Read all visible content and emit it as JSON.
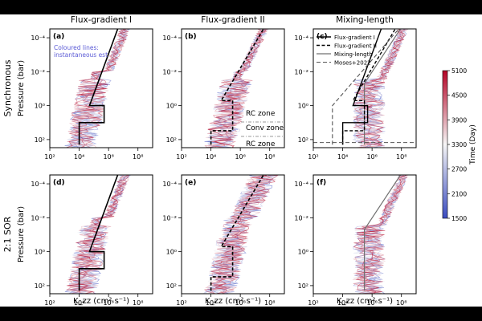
{
  "chart_data": {
    "type": "line",
    "column_titles": [
      "Flux-gradient I",
      "Flux-gradient II",
      "Mixing-length"
    ],
    "row_titles": [
      "Synchronous",
      "2:1 SOR"
    ],
    "ylabel": "Pressure (bar)",
    "xlabel": "K_zz (cm² s⁻¹)",
    "xscale": "log",
    "yscale": "log",
    "xlim": [
      100,
      1000000000.0
    ],
    "ylim_bar": [
      300,
      3e-05
    ],
    "yaxis_inverted": true,
    "x_ticks": [
      "10²",
      "10⁴",
      "10⁶",
      "10⁸"
    ],
    "y_ticks": [
      "10⁻⁴",
      "10⁻²",
      "10⁰",
      "10²"
    ],
    "panels": [
      {
        "label": "(a)",
        "scheme": "Flux-gradient I",
        "row": "Synchronous",
        "annotation": [
          "Coloured lines:",
          "instantaneous est"
        ],
        "profile": [
          [
            10000,
            200
          ],
          [
            10000,
            10
          ],
          [
            500000,
            10
          ],
          [
            500000,
            1
          ],
          [
            50000,
            1
          ],
          [
            5000000,
            2e-05
          ]
        ]
      },
      {
        "label": "(b)",
        "scheme": "Flux-gradient II",
        "row": "Synchronous",
        "annotation": [
          "RC zone",
          "Conv zone",
          "RC zone"
        ],
        "profile": [
          [
            10000,
            200
          ],
          [
            10000,
            30
          ],
          [
            300000,
            30
          ],
          [
            300000,
            0.5
          ],
          [
            50000,
            0.5
          ],
          [
            50000000,
            2e-05
          ]
        ]
      },
      {
        "label": "(c)",
        "scheme": "Mixing-length",
        "row": "Synchronous",
        "legend": [
          "Flux-gradient I",
          "Flux-gradient II",
          "Mixing-length",
          "Moses+2022"
        ],
        "legend_placement": "top-left",
        "moses_kzz": 100000000.0,
        "moses_deep_kzz": 2000
      },
      {
        "label": "(d)",
        "scheme": "Flux-gradient I",
        "row": "2:1 SOR",
        "profile": [
          [
            10000,
            200
          ],
          [
            10000,
            10
          ],
          [
            500000,
            10
          ],
          [
            500000,
            1
          ],
          [
            50000,
            1
          ],
          [
            5000000,
            2e-05
          ]
        ]
      },
      {
        "label": "(e)",
        "scheme": "Flux-gradient II",
        "row": "2:1 SOR",
        "profile": [
          [
            10000,
            200
          ],
          [
            10000,
            30
          ],
          [
            300000,
            30
          ],
          [
            300000,
            0.5
          ],
          [
            50000,
            0.5
          ],
          [
            50000000,
            2e-05
          ]
        ]
      },
      {
        "label": "(f)",
        "scheme": "Mixing-length",
        "row": "2:1 SOR"
      }
    ],
    "colorbar": {
      "label": "Time (Day)",
      "ticks": [
        1500,
        2100,
        2700,
        3300,
        3900,
        4500,
        5100
      ],
      "range": [
        1500,
        5100
      ],
      "colors": [
        "#3b4cc0",
        "#f7f7f7",
        "#b40426"
      ]
    }
  }
}
